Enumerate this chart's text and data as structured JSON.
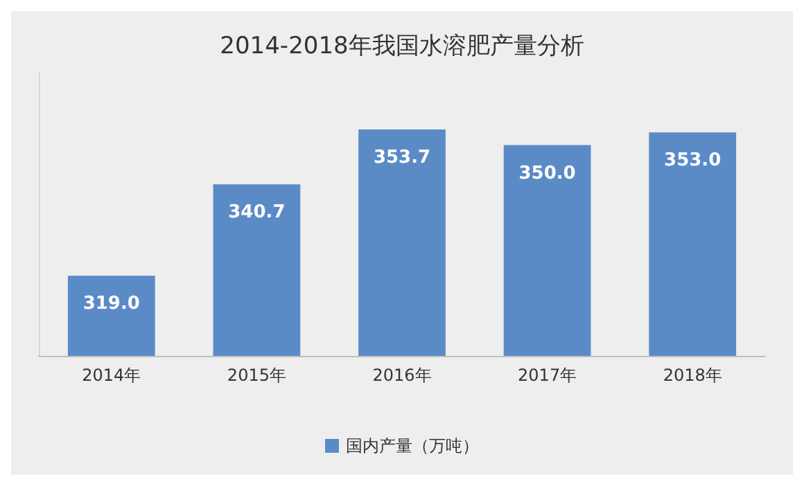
{
  "chart_data": {
    "type": "bar",
    "title": "2014-2018年我国水溶肥产量分析",
    "categories": [
      "2014年",
      "2015年",
      "2016年",
      "2017年",
      "2018年"
    ],
    "series": [
      {
        "name": "国内产量（万吨）",
        "color": "#5b8bc6",
        "values": [
          319.0,
          340.7,
          353.7,
          350.0,
          353.0
        ],
        "value_labels": [
          "319.0",
          "340.7",
          "353.7",
          "350.0",
          "353.0"
        ]
      }
    ],
    "ylim": [
      300,
      367
    ],
    "tick_labels": "x",
    "grid": false,
    "legend": "bottom"
  }
}
